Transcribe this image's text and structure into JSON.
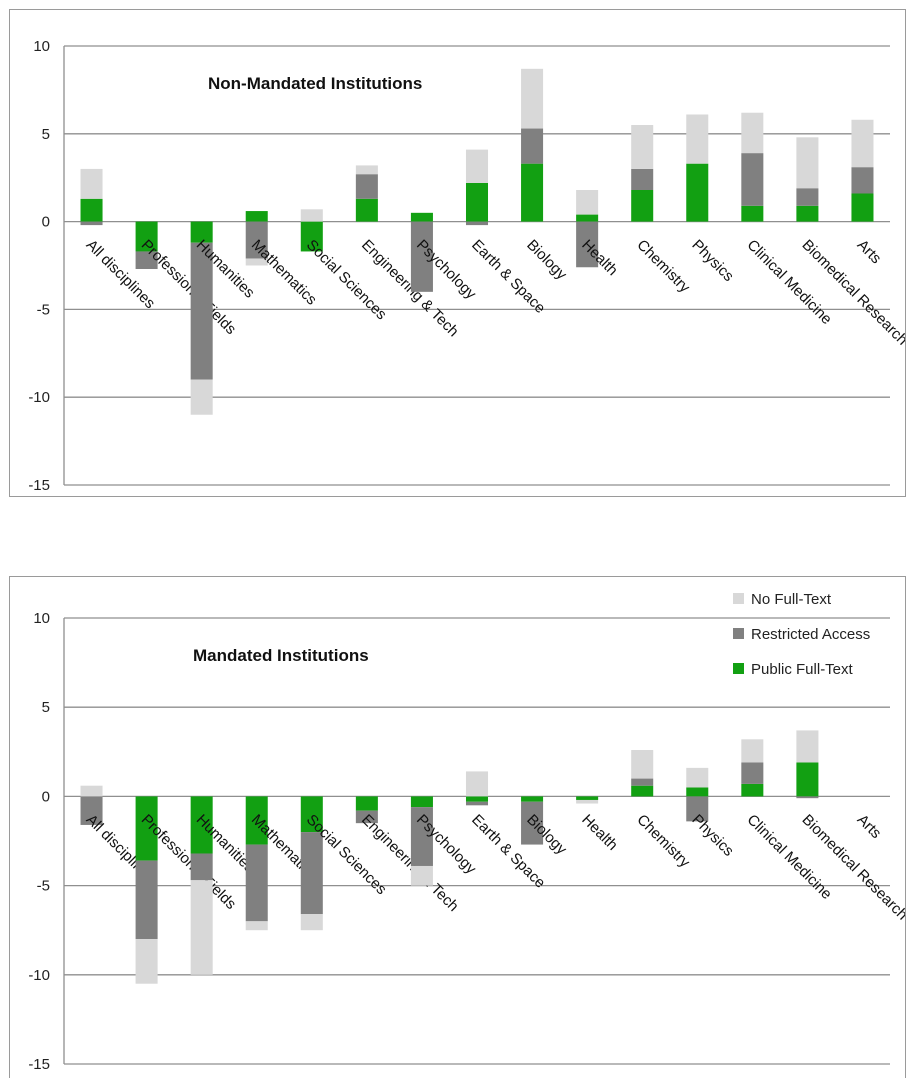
{
  "chart_data": [
    {
      "type": "bar",
      "stacked": true,
      "title": "Non-Mandated Institutions",
      "xlabel": "",
      "ylabel": "",
      "ylim": [
        -15,
        10
      ],
      "yticks": [
        10,
        5,
        0,
        -5,
        -10,
        -15
      ],
      "grid": true,
      "legend": "none",
      "categories": [
        "All disciplines",
        "Professional Fields",
        "Humanities",
        "Mathematics",
        "Social Sciences",
        "Engineering & Tech",
        "Psychology",
        "Earth & Space",
        "Biology",
        "Health",
        "Chemistry",
        "Physics",
        "Clinical Medicine",
        "Biomedical Research",
        "Arts"
      ],
      "series": [
        {
          "name": "Public Full-Text",
          "color": "#12a012",
          "values": [
            1.3,
            -1.7,
            -1.2,
            0.6,
            -1.7,
            1.3,
            0.5,
            2.2,
            3.3,
            0.4,
            1.8,
            3.3,
            0.9,
            0.9,
            1.6
          ]
        },
        {
          "name": "Restricted Access",
          "color": "#808080",
          "values": [
            -0.2,
            -1.0,
            -7.8,
            -2.1,
            0.0,
            1.4,
            -4.0,
            -0.2,
            2.0,
            -2.6,
            1.2,
            0.0,
            3.0,
            1.0,
            1.5
          ]
        },
        {
          "name": "No Full-Text",
          "color": "#d8d8d8",
          "values": [
            1.7,
            0.0,
            -2.0,
            -0.4,
            0.7,
            0.5,
            0.0,
            1.9,
            3.4,
            1.4,
            2.5,
            2.8,
            2.3,
            2.9,
            2.7
          ]
        }
      ]
    },
    {
      "type": "bar",
      "stacked": true,
      "title": "Mandated Institutions",
      "xlabel": "",
      "ylabel": "",
      "ylim": [
        -15,
        10
      ],
      "yticks": [
        10,
        5,
        0,
        -5,
        -10,
        -15
      ],
      "grid": true,
      "legend": "top-right",
      "categories": [
        "All disciplines",
        "Professional Fields",
        "Humanities",
        "Mathematics",
        "Social Sciences",
        "Engineering & Tech",
        "Psychology",
        "Earth & Space",
        "Biology",
        "Health",
        "Chemistry",
        "Physics",
        "Clinical Medicine",
        "Biomedical Research",
        "Arts"
      ],
      "series": [
        {
          "name": "Public Full-Text",
          "color": "#12a012",
          "values": [
            0.0,
            -3.6,
            -3.2,
            -2.7,
            -2.0,
            -0.8,
            -0.6,
            -0.3,
            -0.3,
            -0.2,
            0.6,
            0.5,
            0.7,
            1.9,
            0.0
          ]
        },
        {
          "name": "Restricted Access",
          "color": "#808080",
          "values": [
            -1.6,
            -4.4,
            -1.5,
            -4.3,
            -4.6,
            -0.7,
            -3.3,
            -0.2,
            -2.4,
            0.0,
            0.4,
            -1.4,
            1.2,
            -0.1,
            0.0
          ]
        },
        {
          "name": "No Full-Text",
          "color": "#d8d8d8",
          "values": [
            0.6,
            -2.5,
            -5.3,
            -0.5,
            -0.9,
            0.0,
            -1.1,
            1.4,
            0.0,
            -0.2,
            1.6,
            1.1,
            1.3,
            1.8,
            0.0
          ]
        }
      ]
    }
  ]
}
